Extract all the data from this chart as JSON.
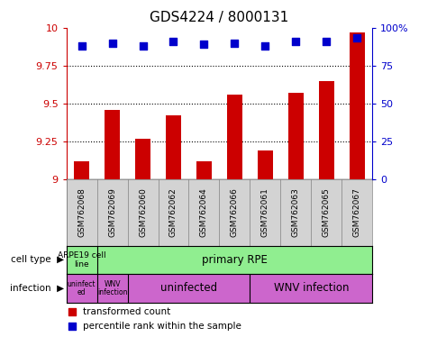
{
  "title": "GDS4224 / 8000131",
  "samples": [
    "GSM762068",
    "GSM762069",
    "GSM762060",
    "GSM762062",
    "GSM762064",
    "GSM762066",
    "GSM762061",
    "GSM762063",
    "GSM762065",
    "GSM762067"
  ],
  "transformed_count": [
    9.12,
    9.46,
    9.27,
    9.42,
    9.12,
    9.56,
    9.19,
    9.57,
    9.65,
    9.97
  ],
  "percentile_rank": [
    88,
    90,
    88,
    91,
    89,
    90,
    88,
    91,
    91,
    93
  ],
  "ylim": [
    9.0,
    10.0
  ],
  "yticks": [
    9.0,
    9.25,
    9.5,
    9.75,
    10.0
  ],
  "ytick_labels": [
    "9",
    "9.25",
    "9.5",
    "9.75",
    "10"
  ],
  "right_yticks": [
    0,
    25,
    50,
    75,
    100
  ],
  "right_ytick_labels": [
    "0",
    "25",
    "50",
    "75",
    "100%"
  ],
  "bar_color": "#cc0000",
  "dot_color": "#0000cc",
  "bar_width": 0.5,
  "dot_size": 35,
  "tick_fontsize": 8,
  "title_fontsize": 11,
  "left_tick_color": "#cc0000",
  "right_tick_color": "#0000cc",
  "cell_type_green": "#90ee90",
  "infection_pink": "#cc66cc",
  "sample_bg": "#d3d3d3"
}
